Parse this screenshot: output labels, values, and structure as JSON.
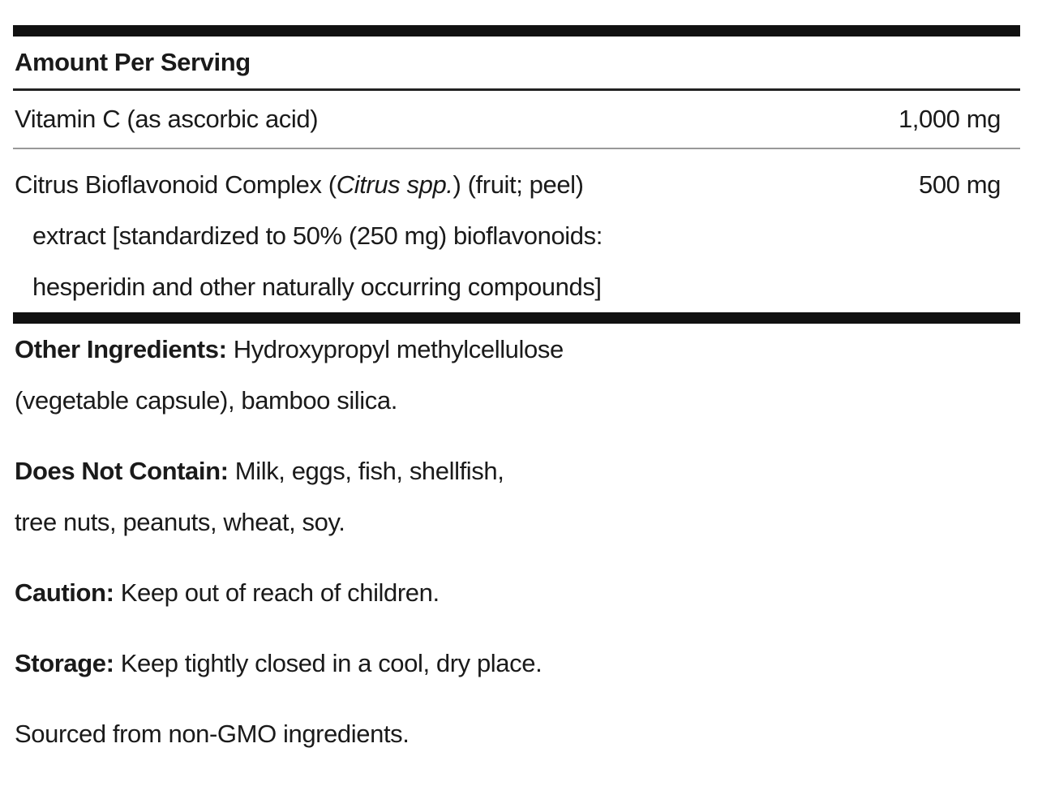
{
  "header": {
    "title": "Amount Per Serving"
  },
  "rows": [
    {
      "name": "Vitamin C (as ascorbic acid)",
      "amount": "1,000 mg"
    },
    {
      "name_before": "Citrus Bioflavonoid Complex (",
      "name_italic": "Citrus spp.",
      "name_after": ") (fruit; peel)",
      "detail_lines": [
        "extract [standardized to 50% (250 mg) bioflavonoids:",
        "hesperidin and other naturally occurring compounds]"
      ],
      "amount": "500 mg"
    }
  ],
  "notes": [
    {
      "label": "Other Ingredients:",
      "text_lines": [
        "Hydroxypropyl methylcellulose",
        "(vegetable capsule), bamboo silica."
      ]
    },
    {
      "label": "Does Not Contain:",
      "text_lines": [
        "Milk, eggs, fish, shellfish,",
        "tree nuts, peanuts, wheat, soy."
      ]
    },
    {
      "label": "Caution:",
      "text_lines": [
        "Keep out of reach of children."
      ]
    },
    {
      "label": "Storage:",
      "text_lines": [
        "Keep tightly closed in a cool, dry place."
      ]
    },
    {
      "text_lines": [
        "Sourced from non-GMO ingredients."
      ]
    }
  ]
}
